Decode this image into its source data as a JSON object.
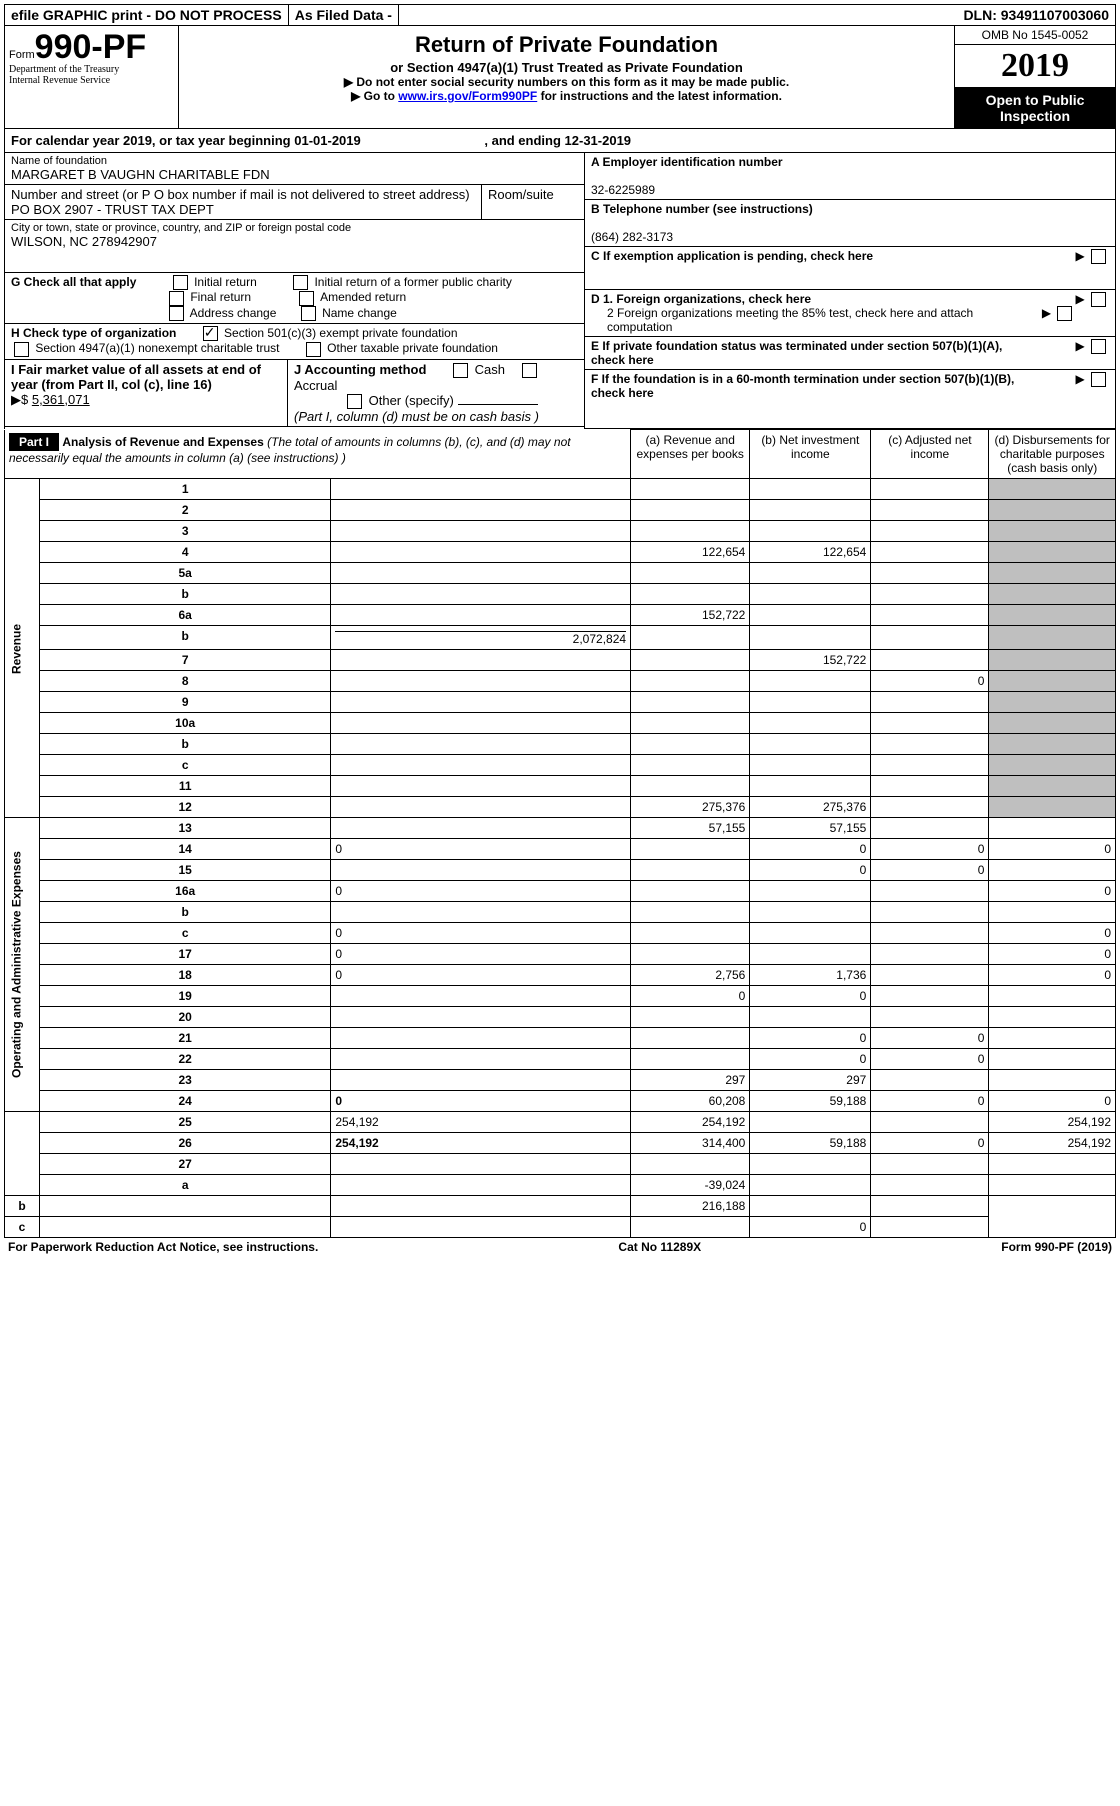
{
  "top": {
    "efile": "efile GRAPHIC print - DO NOT PROCESS",
    "asfiled": "As Filed Data -",
    "dln_lbl": "DLN:",
    "dln": "93491107003060"
  },
  "header": {
    "form_lbl": "Form",
    "form_num": "990-PF",
    "dept1": "Department of the Treasury",
    "dept2": "Internal Revenue Service",
    "title": "Return of Private Foundation",
    "subtitle": "or Section 4947(a)(1) Trust Treated as Private Foundation",
    "instr1": "Do not enter social security numbers on this form as it may be made public.",
    "instr2_pre": "Go to ",
    "instr2_link": "www.irs.gov/Form990PF",
    "instr2_post": " for instructions and the latest information.",
    "omb": "OMB No 1545-0052",
    "year": "2019",
    "open": "Open to Public Inspection"
  },
  "cal": {
    "text_pre": "For calendar year 2019, or tax year beginning ",
    "begin": "01-01-2019",
    "mid": ", and ending ",
    "end": "12-31-2019"
  },
  "entity": {
    "name_lbl": "Name of foundation",
    "name": "MARGARET B VAUGHN CHARITABLE FDN",
    "addr_lbl": "Number and street (or P O  box number if mail is not delivered to street address)",
    "room_lbl": "Room/suite",
    "addr": "PO BOX 2907 - TRUST TAX DEPT",
    "city_lbl": "City or town, state or province, country, and ZIP or foreign postal code",
    "city": "WILSON, NC  278942907",
    "A_lbl": "A Employer identification number",
    "A_val": "32-6225989",
    "B_lbl": "B Telephone number (see instructions)",
    "B_val": "(864) 282-3173",
    "C_lbl": "C If exemption application is pending, check here",
    "G_lbl": "G Check all that apply",
    "G_opts": [
      "Initial return",
      "Initial return of a former public charity",
      "Final return",
      "Amended return",
      "Address change",
      "Name change"
    ],
    "D1": "D 1. Foreign organizations, check here",
    "D2": "2 Foreign organizations meeting the 85% test, check here and attach computation",
    "E": "E  If private foundation status was terminated under section 507(b)(1)(A), check here",
    "H_lbl": "H Check type of organization",
    "H1": "Section 501(c)(3) exempt private foundation",
    "H2": "Section 4947(a)(1) nonexempt charitable trust",
    "H3": "Other taxable private foundation",
    "I_lbl": "I Fair market value of all assets at end of year (from Part II, col  (c), line 16)",
    "I_val": "5,361,071",
    "J_lbl": "J Accounting method",
    "J_opts": [
      "Cash",
      "Accrual"
    ],
    "J_other": "Other (specify)",
    "J_note": "(Part I, column (d) must be on cash basis )",
    "F": "F  If the foundation is in a 60-month termination under section 507(b)(1)(B), check here"
  },
  "part1": {
    "hdr": "Part I",
    "title": "Analysis of Revenue and Expenses",
    "title_note": "(The total of amounts in columns (b), (c), and (d) may not necessarily equal the amounts in column (a) (see instructions) )",
    "cols": {
      "a": "(a)  Revenue and expenses per books",
      "b": "(b)  Net investment income",
      "c": "(c)  Adjusted net income",
      "d": "(d)  Disbursements for charitable purposes (cash basis only)"
    },
    "side_rev": "Revenue",
    "side_exp": "Operating and Administrative Expenses",
    "rows": [
      {
        "n": "1",
        "d": "",
        "a": "",
        "b": "",
        "c": ""
      },
      {
        "n": "2",
        "d": "",
        "a": "",
        "b": "",
        "c": ""
      },
      {
        "n": "3",
        "d": "",
        "a": "",
        "b": "",
        "c": ""
      },
      {
        "n": "4",
        "d": "",
        "a": "122,654",
        "b": "122,654",
        "c": ""
      },
      {
        "n": "5a",
        "d": "",
        "a": "",
        "b": "",
        "c": ""
      },
      {
        "n": "b",
        "d": "",
        "a": "",
        "b": "",
        "c": ""
      },
      {
        "n": "6a",
        "d": "",
        "a": "152,722",
        "b": "",
        "c": ""
      },
      {
        "n": "b",
        "d": "",
        "sub": "2,072,824",
        "a": "",
        "b": "",
        "c": ""
      },
      {
        "n": "7",
        "d": "",
        "a": "",
        "b": "152,722",
        "c": ""
      },
      {
        "n": "8",
        "d": "",
        "a": "",
        "b": "",
        "c": "0"
      },
      {
        "n": "9",
        "d": "",
        "a": "",
        "b": "",
        "c": ""
      },
      {
        "n": "10a",
        "d": "",
        "a": "",
        "b": "",
        "c": ""
      },
      {
        "n": "b",
        "d": "",
        "a": "",
        "b": "",
        "c": ""
      },
      {
        "n": "c",
        "d": "",
        "a": "",
        "b": "",
        "c": ""
      },
      {
        "n": "11",
        "d": "",
        "a": "",
        "b": "",
        "c": ""
      },
      {
        "n": "12",
        "d": "",
        "bold": true,
        "a": "275,376",
        "b": "275,376",
        "c": ""
      },
      {
        "n": "13",
        "d": "",
        "a": "57,155",
        "b": "57,155",
        "c": ""
      },
      {
        "n": "14",
        "d": "0",
        "a": "",
        "b": "0",
        "c": "0"
      },
      {
        "n": "15",
        "d": "",
        "a": "",
        "b": "0",
        "c": "0"
      },
      {
        "n": "16a",
        "d": "0",
        "a": "",
        "b": "",
        "c": ""
      },
      {
        "n": "b",
        "d": "",
        "a": "",
        "b": "",
        "c": ""
      },
      {
        "n": "c",
        "d": "0",
        "a": "",
        "b": "",
        "c": ""
      },
      {
        "n": "17",
        "d": "0",
        "a": "",
        "b": "",
        "c": ""
      },
      {
        "n": "18",
        "d": "0",
        "a": "2,756",
        "b": "1,736",
        "c": ""
      },
      {
        "n": "19",
        "d": "",
        "a": "0",
        "b": "0",
        "c": ""
      },
      {
        "n": "20",
        "d": "",
        "a": "",
        "b": "",
        "c": ""
      },
      {
        "n": "21",
        "d": "",
        "a": "",
        "b": "0",
        "c": "0"
      },
      {
        "n": "22",
        "d": "",
        "a": "",
        "b": "0",
        "c": "0"
      },
      {
        "n": "23",
        "d": "",
        "a": "297",
        "b": "297",
        "c": ""
      },
      {
        "n": "24",
        "d": "0",
        "bold": true,
        "a": "60,208",
        "b": "59,188",
        "c": "0"
      },
      {
        "n": "25",
        "d": "254,192",
        "a": "254,192",
        "b": "",
        "c": ""
      },
      {
        "n": "26",
        "d": "254,192",
        "bold": true,
        "a": "314,400",
        "b": "59,188",
        "c": "0"
      },
      {
        "n": "27",
        "d": "",
        "a": "",
        "b": "",
        "c": ""
      },
      {
        "n": "a",
        "d": "",
        "bold": true,
        "a": "-39,024",
        "b": "",
        "c": ""
      },
      {
        "n": "b",
        "d": "",
        "bold": true,
        "a": "",
        "b": "216,188",
        "c": ""
      },
      {
        "n": "c",
        "d": "",
        "bold": true,
        "a": "",
        "b": "",
        "c": "0"
      }
    ]
  },
  "footer": {
    "left": "For Paperwork Reduction Act Notice, see instructions.",
    "mid": "Cat  No  11289X",
    "right": "Form 990-PF (2019)"
  }
}
